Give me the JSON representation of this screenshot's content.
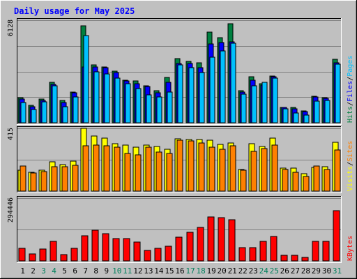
{
  "chart_data": {
    "title": "Daily usage for May 2025",
    "type": "bar",
    "colors": {
      "background": "#c0c0c0",
      "title": "#0000ff",
      "hits": "#008040",
      "files": "#0000ff",
      "pages": "#00c0ff",
      "visits": "#ffff00",
      "sites": "#ff8000",
      "kbytes": "#ff0000",
      "weekend_label": "#00805c",
      "weekday_label": "#000000"
    },
    "categories": [
      "1",
      "2",
      "3",
      "4",
      "5",
      "6",
      "7",
      "8",
      "9",
      "10",
      "11",
      "12",
      "13",
      "14",
      "15",
      "16",
      "17",
      "18",
      "19",
      "20",
      "21",
      "22",
      "23",
      "24",
      "25",
      "26",
      "27",
      "28",
      "29",
      "30",
      "31"
    ],
    "weekend_days": [
      "3",
      "4",
      "10",
      "11",
      "17",
      "18",
      "24",
      "25",
      "31"
    ],
    "panels": [
      {
        "id": "hits_files_pages",
        "ymax_label": "6128",
        "ymax": 6128,
        "legend": [
          {
            "text": "Hits",
            "color": "#008040"
          },
          {
            "text": "/",
            "color": "#000000"
          },
          {
            "text": "Files",
            "color": "#0000ff"
          },
          {
            "text": "/",
            "color": "#000000"
          },
          {
            "text": "Pages",
            "color": "#00c0ff"
          }
        ],
        "series": [
          {
            "name": "Hits",
            "values": [
              1500,
              1050,
              1400,
              2400,
              1350,
              1850,
              5800,
              3450,
              3350,
              3100,
              2550,
              2500,
              2200,
              1900,
              2700,
              3850,
              3650,
              3600,
              5400,
              5100,
              5900,
              1900,
              2750,
              2350,
              2800,
              900,
              900,
              700,
              1600,
              1500,
              3800
            ]
          },
          {
            "name": "Files",
            "values": [
              1400,
              950,
              1350,
              2300,
              1200,
              1800,
              3350,
              3350,
              3300,
              3000,
              2500,
              2350,
              2150,
              1800,
              2400,
              3550,
              3550,
              3300,
              4700,
              4800,
              4850,
              1850,
              2550,
              2250,
              2750,
              900,
              850,
              650,
              1550,
              1450,
              3600
            ]
          },
          {
            "name": "Pages",
            "values": [
              1200,
              800,
              1250,
              2200,
              950,
              1550,
              5200,
              3050,
              2900,
              2650,
              2350,
              2050,
              1650,
              1550,
              1850,
              3450,
              3300,
              3000,
              3900,
              4300,
              4750,
              1700,
              2200,
              2400,
              2650,
              850,
              600,
              450,
              1300,
              1350,
              3500
            ]
          }
        ]
      },
      {
        "id": "visits_sites",
        "ymax_label": "415",
        "ymax": 415,
        "legend": [
          {
            "text": "Visits",
            "color": "#ffff00"
          },
          {
            "text": "/",
            "color": "#000000"
          },
          {
            "text": "Sites",
            "color": "#ff8000"
          }
        ],
        "series": [
          {
            "name": "Visits",
            "values": [
              140,
              125,
              140,
              195,
              175,
              200,
              415,
              365,
              350,
              315,
              305,
              290,
              305,
              295,
              275,
              345,
              340,
              340,
              335,
              310,
              320,
              145,
              315,
              295,
              350,
              150,
              150,
              115,
              155,
              160,
              325
            ]
          },
          {
            "name": "Sites",
            "values": [
              165,
              120,
              130,
              160,
              160,
              170,
              300,
              305,
              300,
              290,
              250,
              240,
              290,
              260,
              250,
              335,
              330,
              320,
              290,
              275,
              300,
              140,
              265,
              280,
              305,
              145,
              125,
              95,
              165,
              145,
              270
            ]
          }
        ]
      },
      {
        "id": "kbytes",
        "ymax_label": "294446",
        "ymax": 294446,
        "legend": [
          {
            "text": "KBytes",
            "color": "#ff0000"
          }
        ],
        "series": [
          {
            "name": "KBytes",
            "values": [
              58000,
              33000,
              55000,
              91000,
              30000,
              58000,
              117000,
              145000,
              126000,
              104000,
              104000,
              88000,
              50000,
              58000,
              70000,
              110000,
              135000,
              157000,
              205000,
              204000,
              194000,
              63000,
              63000,
              90000,
              115000,
              25000,
              25000,
              16000,
              91000,
              91000,
              234000
            ]
          }
        ]
      }
    ]
  }
}
